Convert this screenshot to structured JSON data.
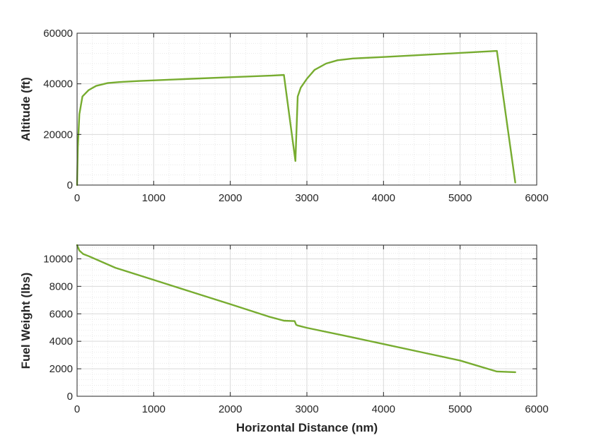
{
  "figure": {
    "background": "#ffffff",
    "line_color": "#77ac30",
    "grid_color": "#d9d9d9"
  },
  "chart_data": [
    {
      "type": "line",
      "title": "",
      "xlabel": "",
      "ylabel": "Altitude (ft)",
      "xlim": [
        0,
        6000
      ],
      "ylim": [
        0,
        60000
      ],
      "xticks": [
        0,
        1000,
        2000,
        3000,
        4000,
        5000,
        6000
      ],
      "yticks": [
        0,
        20000,
        40000,
        60000
      ],
      "xtick_labels": [
        "0",
        "1000",
        "2000",
        "3000",
        "4000",
        "5000",
        "6000"
      ],
      "ytick_labels": [
        "0",
        "20000",
        "40000",
        "60000"
      ],
      "grid": true,
      "minor_grid": true,
      "series": [
        {
          "color": "#77ac30",
          "x": [
            0,
            10,
            30,
            70,
            150,
            250,
            400,
            550,
            800,
            1500,
            2000,
            2500,
            2700,
            2850,
            2880,
            2920,
            3000,
            3100,
            3250,
            3400,
            3600,
            4000,
            4500,
            5000,
            5480,
            5720
          ],
          "y": [
            0,
            15000,
            28000,
            35000,
            37500,
            39200,
            40300,
            40700,
            41100,
            42000,
            42600,
            43200,
            43500,
            9500,
            35000,
            38500,
            42000,
            45500,
            48000,
            49300,
            50000,
            50600,
            51400,
            52200,
            53000,
            1000
          ]
        }
      ]
    },
    {
      "type": "line",
      "title": "",
      "xlabel": "Horizontal Distance (nm)",
      "ylabel": "Fuel Weight (lbs)",
      "xlim": [
        0,
        6000
      ],
      "ylim": [
        0,
        11000
      ],
      "xticks": [
        0,
        1000,
        2000,
        3000,
        4000,
        5000,
        6000
      ],
      "yticks": [
        0,
        2000,
        4000,
        6000,
        8000,
        10000
      ],
      "xtick_labels": [
        "0",
        "1000",
        "2000",
        "3000",
        "4000",
        "5000",
        "6000"
      ],
      "ytick_labels": [
        "0",
        "2000",
        "4000",
        "6000",
        "8000",
        "10000"
      ],
      "grid": true,
      "minor_grid": true,
      "series": [
        {
          "color": "#77ac30",
          "x": [
            0,
            30,
            80,
            150,
            500,
            1000,
            1500,
            2000,
            2500,
            2700,
            2800,
            2840,
            2860,
            2880,
            3000,
            3500,
            4000,
            4500,
            5000,
            5480,
            5720
          ],
          "y": [
            11000,
            10600,
            10350,
            10200,
            9350,
            8470,
            7580,
            6700,
            5800,
            5500,
            5480,
            5470,
            5200,
            5150,
            4980,
            4400,
            3800,
            3200,
            2600,
            1800,
            1750
          ]
        }
      ]
    }
  ]
}
